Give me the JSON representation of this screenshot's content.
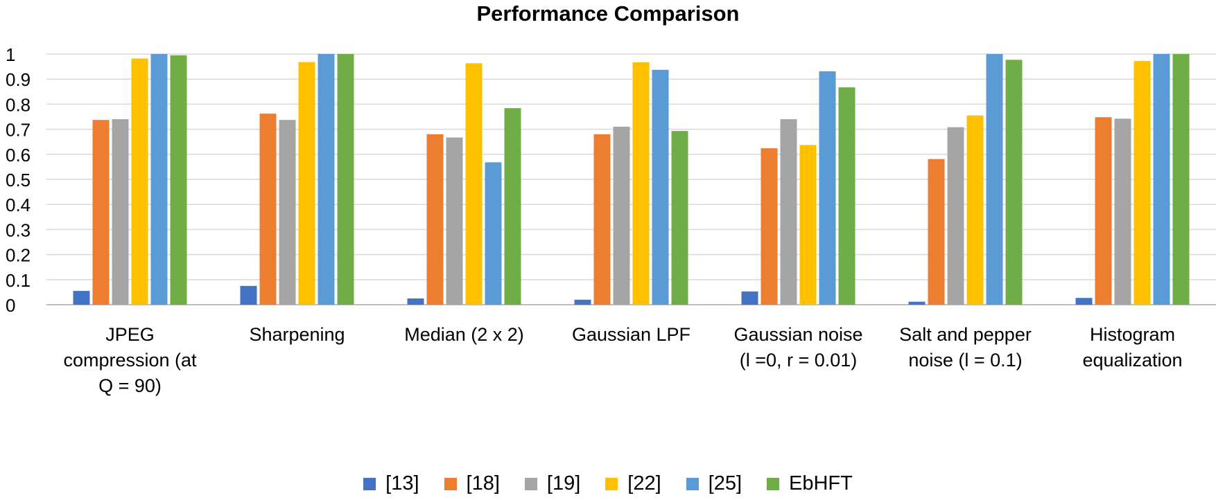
{
  "chart_data": {
    "type": "bar",
    "title": "Performance Comparison",
    "xlabel": "",
    "ylabel": "",
    "ylim": [
      0,
      1
    ],
    "yticks": [
      "0",
      "0.1",
      "0.2",
      "0.3",
      "0.4",
      "0.5",
      "0.6",
      "0.7",
      "0.8",
      "0.9",
      "1"
    ],
    "grid": true,
    "legend_position": "bottom",
    "categories": [
      [
        "JPEG",
        "compression (at",
        "Q = 90)"
      ],
      [
        "Sharpening"
      ],
      [
        "Median (2 x 2)"
      ],
      [
        "Gaussian LPF"
      ],
      [
        "Gaussian noise",
        "(l =0, r = 0.01)"
      ],
      [
        "Salt and pepper",
        "noise (l = 0.1)"
      ],
      [
        "Histogram",
        "equalization"
      ]
    ],
    "series": [
      {
        "name": "[13]",
        "color": "#4472C4",
        "values": [
          0.055,
          0.075,
          0.025,
          0.02,
          0.053,
          0.012,
          0.027
        ]
      },
      {
        "name": "[18]",
        "color": "#ED7D31",
        "values": [
          0.737,
          0.762,
          0.68,
          0.68,
          0.624,
          0.581,
          0.748
        ]
      },
      {
        "name": "[19]",
        "color": "#A5A5A5",
        "values": [
          0.74,
          0.737,
          0.667,
          0.71,
          0.74,
          0.708,
          0.742
        ]
      },
      {
        "name": "[22]",
        "color": "#FFC000",
        "values": [
          0.982,
          0.968,
          0.963,
          0.967,
          0.637,
          0.755,
          0.972
        ]
      },
      {
        "name": "[25]",
        "color": "#5B9BD5",
        "values": [
          1.0,
          1.0,
          0.568,
          0.937,
          0.931,
          1.0,
          1.0
        ]
      },
      {
        "name": "EbHFT",
        "color": "#70AD47",
        "values": [
          0.995,
          1.0,
          0.784,
          0.693,
          0.867,
          0.977,
          1.0
        ]
      }
    ]
  }
}
